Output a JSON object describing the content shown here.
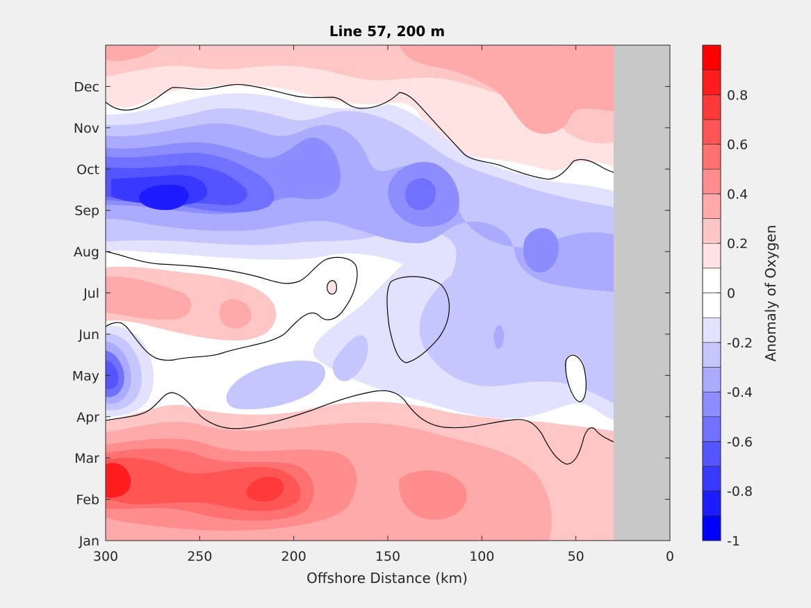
{
  "chart_data": {
    "type": "contour",
    "title": "Line 57, 200 m",
    "xlabel": "Offshore Distance (km)",
    "colorbar_label": "Anomaly of Oxygen",
    "x_ticks": [
      "300",
      "250",
      "200",
      "150",
      "100",
      "50",
      "0"
    ],
    "x_tick_values": [
      300,
      250,
      200,
      150,
      100,
      50,
      0
    ],
    "xlim": [
      300,
      0
    ],
    "y_ticks": [
      "Jan",
      "Feb",
      "Mar",
      "Apr",
      "May",
      "Jun",
      "Jul",
      "Aug",
      "Sep",
      "Oct",
      "Nov",
      "Dec"
    ],
    "y_tick_values": [
      1,
      2,
      3,
      4,
      5,
      6,
      7,
      8,
      9,
      10,
      11,
      12
    ],
    "ylim": [
      1,
      13
    ],
    "colorbar_ticks": [
      "0.8",
      "0.6",
      "0.4",
      "0.2",
      "0",
      "-0.2",
      "-0.4",
      "-0.6",
      "-0.8",
      "-1"
    ],
    "colorbar_tick_values": [
      0.8,
      0.6,
      0.4,
      0.2,
      0,
      -0.2,
      -0.4,
      -0.6,
      -0.8,
      -1
    ],
    "colorbar_range": [
      -1,
      1
    ],
    "contour_levels": [
      -1,
      -0.9,
      -0.8,
      -0.7,
      -0.6,
      -0.5,
      -0.4,
      -0.3,
      -0.2,
      -0.1,
      0.1,
      0.2,
      0.3,
      0.4,
      0.5,
      0.6,
      0.7,
      0.8,
      0.9,
      1
    ],
    "zero_contour_lines": true,
    "no_data_region_km": [
      30,
      0
    ],
    "colormap": [
      "#0000ff",
      "#1c1cff",
      "#3838ff",
      "#5555ff",
      "#7171ff",
      "#8d8dff",
      "#aaaaff",
      "#c6c6ff",
      "#e2e2ff",
      "#ffffff",
      "#ffffff",
      "#ffe2e2",
      "#ffc6c6",
      "#ffaaaa",
      "#ff8d8d",
      "#ff7171",
      "#ff5555",
      "#ff3838",
      "#ff1c1c",
      "#ff0000"
    ],
    "anomaly_features": [
      {
        "x": 270,
        "y": 9.35,
        "value": -0.85
      },
      {
        "x": 225,
        "y": 9.1,
        "value": -0.6
      },
      {
        "x": 180,
        "y": 9.55,
        "value": -0.5
      },
      {
        "x": 135,
        "y": 9.3,
        "value": -0.55
      },
      {
        "x": 70,
        "y": 8.05,
        "value": -0.45
      },
      {
        "x": 92,
        "y": 5.9,
        "value": -0.35
      },
      {
        "x": 295,
        "y": 5.0,
        "value": -0.6
      },
      {
        "x": 230,
        "y": 4.7,
        "value": -0.3
      },
      {
        "x": 170,
        "y": 5.3,
        "value": -0.3
      },
      {
        "x": 260,
        "y": 7.15,
        "value": 0.4
      },
      {
        "x": 225,
        "y": 6.9,
        "value": 0.45
      },
      {
        "x": 178,
        "y": 7.1,
        "value": 0.2
      },
      {
        "x": 135,
        "y": 6.6,
        "value": 0.15
      },
      {
        "x": 298,
        "y": 2.5,
        "value": 0.85
      },
      {
        "x": 215,
        "y": 2.2,
        "value": 0.8
      },
      {
        "x": 140,
        "y": 2.3,
        "value": 0.45
      },
      {
        "x": 70,
        "y": 12.2,
        "value": 0.4
      },
      {
        "x": 230,
        "y": 12.7,
        "value": 0.25
      },
      {
        "x": 120,
        "y": 12.5,
        "value": 0.3
      }
    ],
    "colors": {
      "background": "#f0f0f0",
      "plot_bg": "#ffffff",
      "no_data": "#c8c8c8",
      "axis": "#262626"
    }
  }
}
